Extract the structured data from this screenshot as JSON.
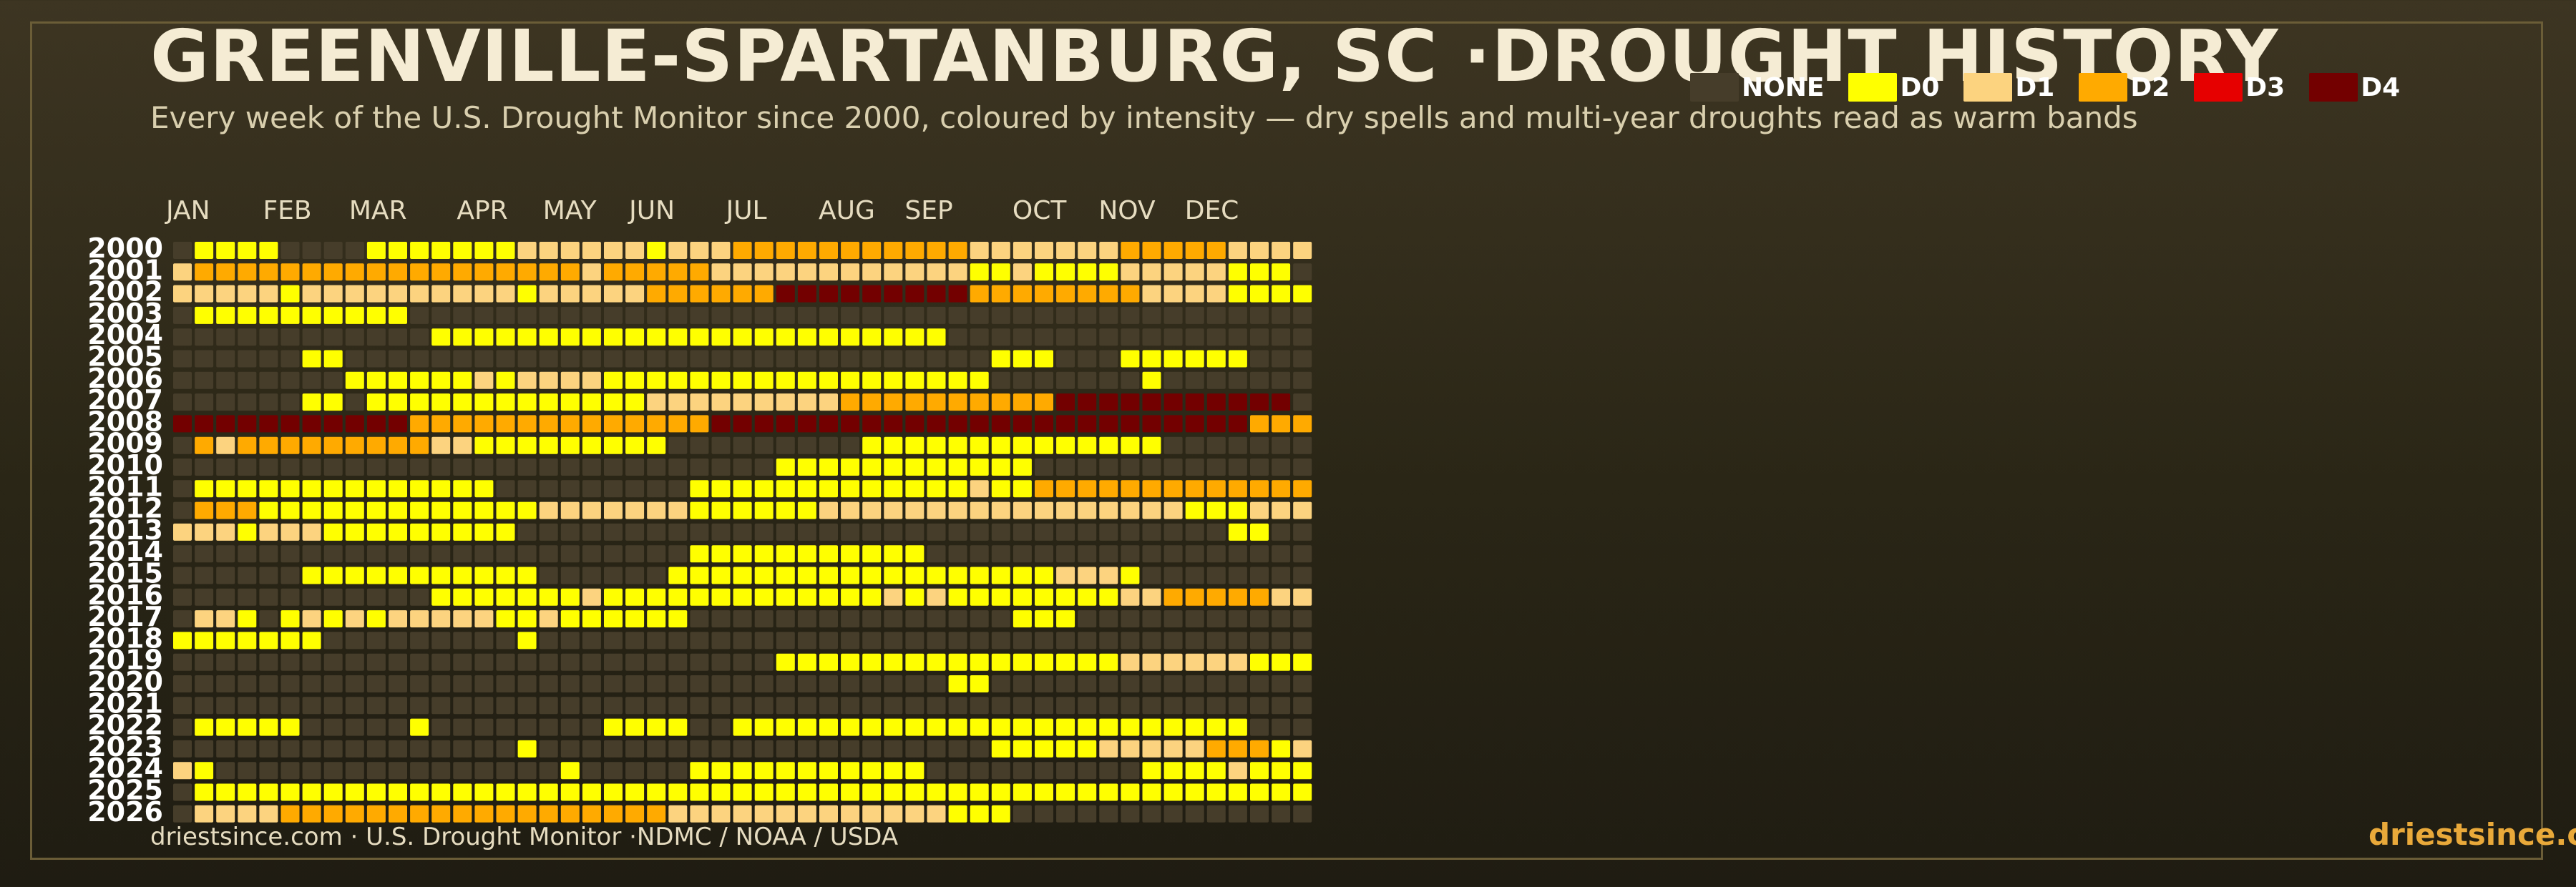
{
  "title": "GREENVILLE-SPARTANBURG, SC ·DROUGHT HISTORY",
  "subtitle": "Every week of the U.S. Drought Monitor since 2000, coloured by intensity — dry spells and multi-year droughts read as warm bands",
  "footer_source": "driestsince.com  · U.S. Drought Monitor ·NDMC / NOAA / USDA",
  "footer_brand": "driestsince.com",
  "chart_data": {
    "type": "heatmap",
    "x_unit": "week of year",
    "weeks_per_year": 53,
    "months": [
      {
        "label": "JAN",
        "week": 1
      },
      {
        "label": "FEB",
        "week": 5.5
      },
      {
        "label": "MAR",
        "week": 9.5
      },
      {
        "label": "APR",
        "week": 14.5
      },
      {
        "label": "MAY",
        "week": 18.5
      },
      {
        "label": "JUN",
        "week": 22.5
      },
      {
        "label": "JUL",
        "week": 27
      },
      {
        "label": "AUG",
        "week": 31.3
      },
      {
        "label": "SEP",
        "week": 35.3
      },
      {
        "label": "OCT",
        "week": 40.3
      },
      {
        "label": "NOV",
        "week": 44.3
      },
      {
        "label": "DEC",
        "week": 48.3
      }
    ],
    "categories": [
      {
        "label": "NONE",
        "color": "#463d2a"
      },
      {
        "label": "D0",
        "color": "#ffff00"
      },
      {
        "label": "D1",
        "color": "#fcd37f"
      },
      {
        "label": "D2",
        "color": "#ffaa00"
      },
      {
        "label": "D3",
        "color": "#e60000"
      },
      {
        "label": "D4",
        "color": "#730000"
      }
    ],
    "years": [
      2000,
      2001,
      2002,
      2003,
      2004,
      2005,
      2006,
      2007,
      2008,
      2009,
      2010,
      2011,
      2012,
      2013,
      2014,
      2015,
      2016,
      2017,
      2018,
      2019,
      2020,
      2021,
      2022,
      2023,
      2024,
      2025,
      2026
    ],
    "rows": [
      "01111000011111112222221222333333333332222222333332222",
      "23333333333333333332333332222222222221121111222221110",
      "22222122222222221222223333335555555553333333322221111",
      "01111111111000000000000000000000000000000000000000000",
      "00000000000011111111111111111111111100000000000000000",
      "00000011000000000000000000000000000000111000111111000",
      "00000000111111212222111111111111111111000000010000000",
      "00000011011111111111112222222223333333333555555555550",
      "55555555555333333333333335555555555555555555555555333",
      "03233333333322111111111000000000111111111111110000000",
      "00000000000000000000000000001111111111110000000000000",
      "01111111111111100000000011111111111112113333333333333",
      "03331111111111111222222211111122222222222222222111222",
      "22212221111111110000000000000000000000000000000001100",
      "00000000000000000000000011111111111000000000000000000",
      "00000011111111111000000111111111111111111222100000000",
      "00000000000011111112111111111111121211111111223333322",
      "02210121212222211211111100000000000000011100000000000",
      "11111110000000001000000000000000000000000000000000000",
      "00000000000000000000000000001111111111111111222222111",
      "00000000000000000000000000000000000011000000000000000",
      "00000000000000000000000000000000000000000000000000000",
      "01111100000100000000111100111111111111111111111111000",
      "00000000000000001000000000000000000000111112222233312",
      "21000000000000000010000011111111111000000000011112111",
      "01111111111111111111111111111111111111111111111111111",
      "02222333333333333333333222222222222211100000000000000"
    ]
  },
  "_note_rows": "digits: 0=NONE,1=D0,2=D1,3=D2,4=D3(red),5=D4; each row is 53 weeks"
}
